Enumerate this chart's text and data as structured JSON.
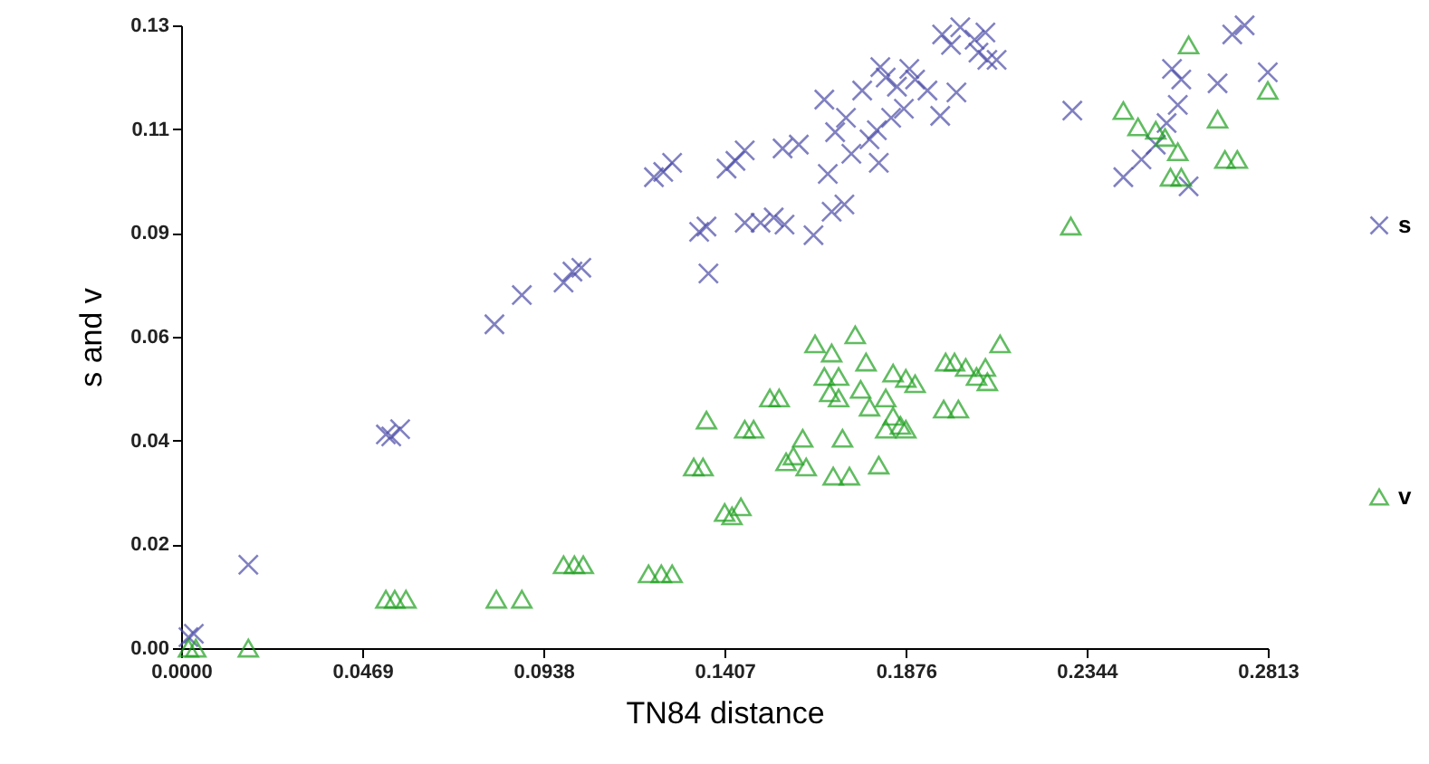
{
  "chart_data": {
    "type": "scatter",
    "xlabel": "TN84 distance",
    "ylabel": "s and v",
    "xlim": [
      0,
      0.2813
    ],
    "ylim": [
      0,
      0.13
    ],
    "xticks": [
      {
        "value": 0,
        "label": "0.0000"
      },
      0.0469,
      0.0938,
      0.1407,
      0.1876,
      0.2344,
      0.2813
    ],
    "yticks": [
      {
        "value": 0,
        "label": "0.00"
      },
      {
        "value": 0.0217,
        "label": "0.02"
      },
      {
        "value": 0.0433,
        "label": "0.04"
      },
      {
        "value": 0.065,
        "label": "0.06"
      },
      {
        "value": 0.0867,
        "label": "0.09"
      },
      {
        "value": 0.1083,
        "label": "0.11"
      },
      0.13
    ],
    "grid": false,
    "legend": "right",
    "series": [
      {
        "name": "s",
        "color": "#4b4ba8",
        "marker": "cross",
        "x": [
          0.0033,
          0.0019,
          0.0174,
          0.053,
          0.0544,
          0.0567,
          0.0811,
          0.0882,
          0.099,
          0.1013,
          0.1036,
          0.1224,
          0.1248,
          0.1271,
          0.1341,
          0.1365,
          0.136,
          0.1412,
          0.1435,
          0.1459,
          0.1459,
          0.15,
          0.1534,
          0.1562,
          0.1557,
          0.1599,
          0.1637,
          0.1684,
          0.1717,
          0.1674,
          0.1693,
          0.1721,
          0.1665,
          0.1763,
          0.181,
          0.1782,
          0.1735,
          0.1806,
          0.1801,
          0.1838,
          0.1853,
          0.1885,
          0.19,
          0.1824,
          0.1871,
          0.1932,
          0.197,
          0.1993,
          0.2017,
          0.2054,
          0.2082,
          0.2064,
          0.2087,
          0.2111,
          0.2007,
          0.1965,
          0.2307,
          0.2439,
          0.2486,
          0.2523,
          0.2551,
          0.258,
          0.2565,
          0.2589,
          0.2608,
          0.2683,
          0.2721,
          0.2753,
          0.2813
        ],
        "values": [
          0.003,
          0.0023,
          0.0174,
          0.0446,
          0.0442,
          0.0457,
          0.0676,
          0.0737,
          0.0763,
          0.0786,
          0.0794,
          0.0983,
          0.0994,
          0.1013,
          0.0869,
          0.0782,
          0.088,
          0.1001,
          0.1017,
          0.1039,
          0.0888,
          0.0888,
          0.0899,
          0.0884,
          0.1043,
          0.1051,
          0.0862,
          0.0911,
          0.0926,
          0.099,
          0.1077,
          0.1107,
          0.1145,
          0.1164,
          0.1213,
          0.1062,
          0.1032,
          0.1013,
          0.1081,
          0.1107,
          0.1172,
          0.1209,
          0.1187,
          0.1191,
          0.1126,
          0.1164,
          0.1281,
          0.1259,
          0.1296,
          0.127,
          0.1285,
          0.1243,
          0.1228,
          0.1228,
          0.116,
          0.1111,
          0.1122,
          0.0983,
          0.102,
          0.1051,
          0.1096,
          0.1134,
          0.1209,
          0.1187,
          0.0964,
          0.1179,
          0.1281,
          0.13,
          0.1202
        ]
      },
      {
        "name": "v",
        "color": "#1fa01f",
        "marker": "triangle",
        "x": [
          0.0019,
          0.0038,
          0.0174,
          0.053,
          0.0553,
          0.0582,
          0.0816,
          0.0882,
          0.099,
          0.1018,
          0.1041,
          0.121,
          0.1243,
          0.1271,
          0.1327,
          0.1351,
          0.136,
          0.1407,
          0.1426,
          0.1449,
          0.1459,
          0.1482,
          0.1524,
          0.1548,
          0.1566,
          0.1585,
          0.1609,
          0.1618,
          0.1641,
          0.1665,
          0.1684,
          0.1702,
          0.1679,
          0.1702,
          0.1712,
          0.1688,
          0.173,
          0.1745,
          0.1759,
          0.1782,
          0.1773,
          0.1806,
          0.1824,
          0.1843,
          0.1862,
          0.1843,
          0.1876,
          0.19,
          0.1824,
          0.1876,
          0.1979,
          0.2002,
          0.1974,
          0.2012,
          0.2031,
          0.2059,
          0.2087,
          0.2082,
          0.212,
          0.2303,
          0.2439,
          0.2477,
          0.2523,
          0.2547,
          0.2561,
          0.2589,
          0.258,
          0.2608,
          0.2683,
          0.2702,
          0.2734,
          0.2813
        ],
        "values": [
          0,
          0,
          0,
          0.0102,
          0.0102,
          0.0102,
          0.0102,
          0.0102,
          0.0174,
          0.0174,
          0.0174,
          0.0155,
          0.0155,
          0.0155,
          0.0378,
          0.0378,
          0.0476,
          0.0283,
          0.0276,
          0.0295,
          0.0457,
          0.0457,
          0.0522,
          0.0522,
          0.0389,
          0.0401,
          0.0438,
          0.0378,
          0.0635,
          0.0567,
          0.0616,
          0.0567,
          0.0533,
          0.0522,
          0.0438,
          0.0359,
          0.0359,
          0.0654,
          0.054,
          0.0503,
          0.0597,
          0.0382,
          0.0457,
          0.0484,
          0.0465,
          0.0574,
          0.0563,
          0.0552,
          0.0522,
          0.0457,
          0.0597,
          0.0597,
          0.0499,
          0.0499,
          0.0586,
          0.0567,
          0.0556,
          0.0586,
          0.0635,
          0.0881,
          0.1122,
          0.1088,
          0.1081,
          0.1066,
          0.0983,
          0.0983,
          0.1036,
          0.1259,
          0.1104,
          0.102,
          0.102,
          0.1164
        ]
      }
    ]
  }
}
